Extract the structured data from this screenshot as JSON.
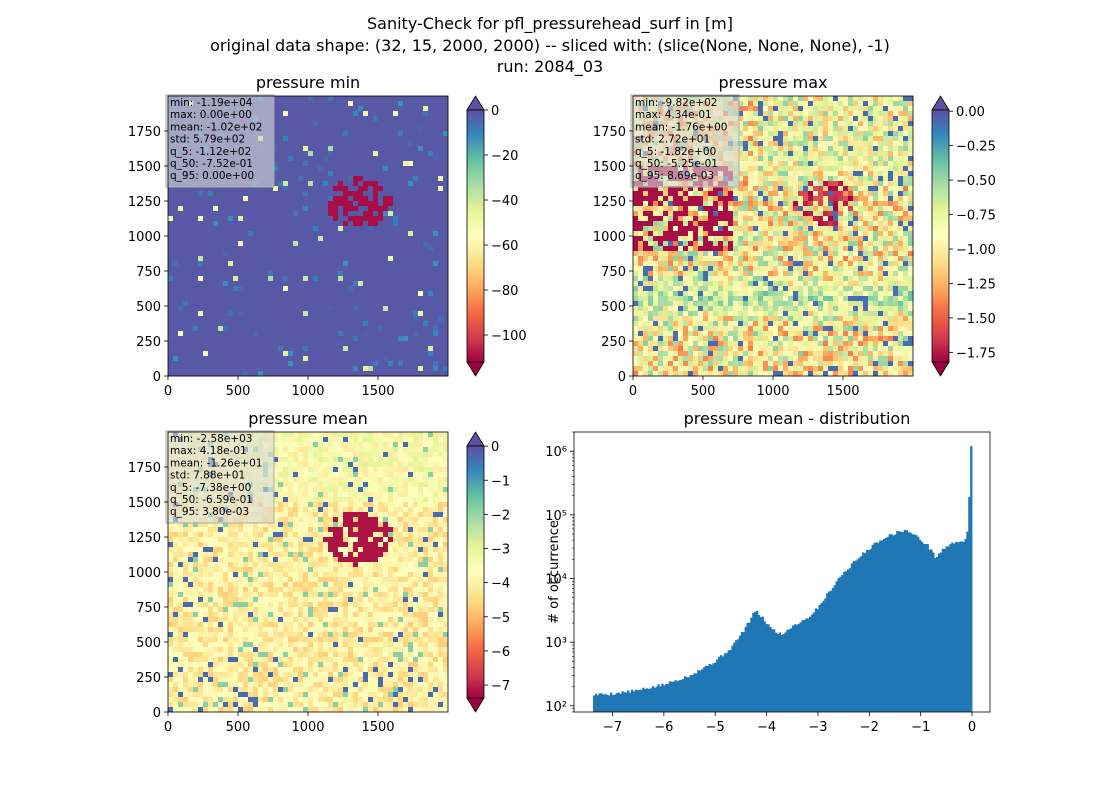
{
  "suptitle": [
    "Sanity-Check for pfl_pressurehead_surf in [m]",
    "original data shape: (32, 15, 2000, 2000) -- sliced with: (slice(None, None, None), -1)",
    "run: 2084_03"
  ],
  "colormap": {
    "name": "Spectral",
    "stops": [
      "#9e0142",
      "#d53e4f",
      "#f46d43",
      "#fdae61",
      "#fee08b",
      "#ffffbf",
      "#e6f598",
      "#abdda4",
      "#66c2a5",
      "#3288bd",
      "#5e4fa2"
    ]
  },
  "chart_data": [
    {
      "type": "heatmap",
      "title": "pressure min",
      "xticks": [
        "0",
        "500",
        "1000",
        "1500"
      ],
      "yticks": [
        "0",
        "250",
        "500",
        "750",
        "1000",
        "1250",
        "1500",
        "1750"
      ],
      "xlim": [
        0,
        2000
      ],
      "ylim": [
        0,
        2000
      ],
      "stats": [
        "min: -1.19e+04",
        "max: 0.00e+00",
        "mean: -1.02e+02",
        "std: 5.79e+02",
        "q_5: -1.12e+02",
        "q_50: -7.52e-01",
        "q_95: 0.00e+00"
      ],
      "colorbar": {
        "vmin": -112,
        "vmax": 0,
        "extend": "both",
        "ticks": [
          0,
          -20,
          -40,
          -60,
          -80,
          -100
        ],
        "ticklabels": [
          "0",
          "−20",
          "−40",
          "−60",
          "−80",
          "−100"
        ]
      }
    },
    {
      "type": "heatmap",
      "title": "pressure max",
      "xticks": [
        "0",
        "500",
        "1000",
        "1500"
      ],
      "yticks": [
        "0",
        "250",
        "500",
        "750",
        "1000",
        "1250",
        "1500",
        "1750"
      ],
      "xlim": [
        0,
        2000
      ],
      "ylim": [
        0,
        2000
      ],
      "stats": [
        "min: -9.82e+02",
        "max: 4.34e-01",
        "mean: -1.76e+00",
        "std: 2.72e+01",
        "q_5: -1.82e+00",
        "q_50: -5.25e-01",
        "q_95: 8.69e-03"
      ],
      "colorbar": {
        "vmin": -1.82,
        "vmax": 0.0087,
        "extend": "both",
        "ticks": [
          0.0,
          -0.25,
          -0.5,
          -0.75,
          -1.0,
          -1.25,
          -1.5,
          -1.75
        ],
        "ticklabels": [
          "0.00",
          "−0.25",
          "−0.50",
          "−0.75",
          "−1.00",
          "−1.25",
          "−1.50",
          "−1.75"
        ]
      }
    },
    {
      "type": "heatmap",
      "title": "pressure mean",
      "xticks": [
        "0",
        "500",
        "1000",
        "1500"
      ],
      "yticks": [
        "0",
        "250",
        "500",
        "750",
        "1000",
        "1250",
        "1500",
        "1750"
      ],
      "xlim": [
        0,
        2000
      ],
      "ylim": [
        0,
        2000
      ],
      "stats": [
        "min: -2.58e+03",
        "max: 4.18e-01",
        "mean: -1.26e+01",
        "std: 7.88e+01",
        "q_5: -7.38e+00",
        "q_50: -6.59e-01",
        "q_95: 3.80e-03"
      ],
      "colorbar": {
        "vmin": -7.38,
        "vmax": 0.0038,
        "extend": "both",
        "ticks": [
          0,
          -1,
          -2,
          -3,
          -4,
          -5,
          -6,
          -7
        ],
        "ticklabels": [
          "0",
          "−1",
          "−2",
          "−3",
          "−4",
          "−5",
          "−6",
          "−7"
        ]
      }
    },
    {
      "type": "bar",
      "title": "pressure mean - distribution",
      "xlabel": "",
      "ylabel": "# of occurrence",
      "yscale": "log",
      "xlim": [
        -7.75,
        0.35
      ],
      "ylim": [
        80,
        2000000
      ],
      "xticks": [
        -7,
        -6,
        -5,
        -4,
        -3,
        -2,
        -1,
        0
      ],
      "xticklabels": [
        "−7",
        "−6",
        "−5",
        "−4",
        "−3",
        "−2",
        "−1",
        "0"
      ],
      "yticks": [
        100,
        1000,
        10000,
        100000,
        1000000
      ],
      "yticklabels": [
        "10²",
        "10³",
        "10⁴",
        "10⁵",
        "10⁶"
      ],
      "color": "#1f77b4",
      "bin_profile": [
        [
          -7.38,
          150
        ],
        [
          -7.0,
          155
        ],
        [
          -6.5,
          175
        ],
        [
          -6.0,
          215
        ],
        [
          -5.5,
          300
        ],
        [
          -5.0,
          500
        ],
        [
          -4.7,
          800
        ],
        [
          -4.45,
          1500
        ],
        [
          -4.22,
          3100
        ],
        [
          -4.1,
          2500
        ],
        [
          -3.9,
          1600
        ],
        [
          -3.7,
          1300
        ],
        [
          -3.5,
          1800
        ],
        [
          -3.2,
          2400
        ],
        [
          -3.0,
          3500
        ],
        [
          -2.6,
          10000
        ],
        [
          -2.3,
          18000
        ],
        [
          -2.0,
          30000
        ],
        [
          -1.75,
          42000
        ],
        [
          -1.55,
          50000
        ],
        [
          -1.3,
          58000
        ],
        [
          -1.05,
          44000
        ],
        [
          -0.85,
          32000
        ],
        [
          -0.7,
          21000
        ],
        [
          -0.55,
          30000
        ],
        [
          -0.3,
          38000
        ],
        [
          -0.1,
          40000
        ],
        [
          0.0,
          1200000
        ]
      ]
    }
  ]
}
